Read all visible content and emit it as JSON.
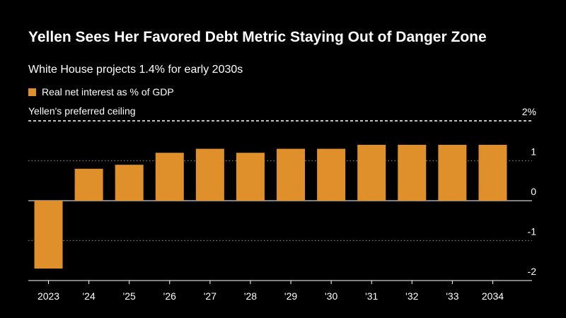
{
  "chart_data": {
    "type": "bar",
    "title": "Yellen Sees Her Favored Debt Metric Staying Out of Danger Zone",
    "subtitle": "White House projects 1.4% for early 2030s",
    "legend": [
      {
        "label": "Real net interest as % of GDP",
        "color": "#e0902a"
      }
    ],
    "categories": [
      "2023",
      "'24",
      "'25",
      "'26",
      "'27",
      "'28",
      "'29",
      "'30",
      "'31",
      "'32",
      "'33",
      "2034"
    ],
    "values": [
      -1.7,
      0.8,
      0.9,
      1.2,
      1.3,
      1.2,
      1.3,
      1.3,
      1.4,
      1.4,
      1.4,
      1.4
    ],
    "ylim": [
      -2,
      2
    ],
    "ytick_values": [
      2,
      1,
      0,
      -1,
      -2
    ],
    "ytick_labels": [
      "2%",
      "1",
      "0",
      "-1",
      "-2"
    ],
    "xlabel": "",
    "ylabel": "",
    "reference_line": {
      "label": "Yellen's preferred ceiling",
      "value": 2
    },
    "bar_color": "#e0902a"
  }
}
